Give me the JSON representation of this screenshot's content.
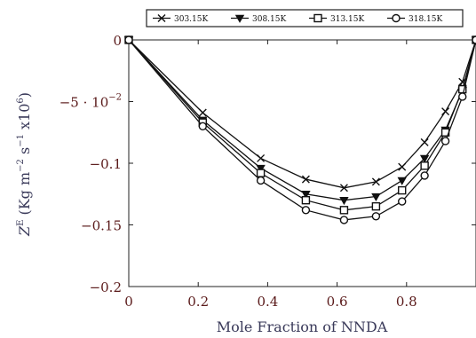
{
  "chart_data": {
    "type": "line",
    "xlabel": "Mole Fraction of NNDA",
    "ylabel": "Z^E (Kg m^-2 s^-1 x10^6)",
    "ylabel_parts": {
      "base": "Z",
      "sup": "E",
      "units_open": " (Kg m",
      "u1": "−2",
      "mid": " s",
      "u2": "−1",
      "tail": " x10",
      "u3": "6",
      "close": ")"
    },
    "xlim": [
      0,
      1.0
    ],
    "ylim": [
      -0.2,
      0
    ],
    "x_ticks": [
      0,
      0.2,
      0.4,
      0.6,
      0.8
    ],
    "x_tick_labels": [
      "0",
      "0.2",
      "0.4",
      "0.6",
      "0.8"
    ],
    "y_ticks": [
      0,
      -0.05,
      -0.1,
      -0.15,
      -0.2
    ],
    "y_tick_labels": [
      "0",
      "−5 · 10",
      "−0.1",
      "−0.15",
      "−0.2"
    ],
    "y_tick_sup": [
      "",
      "−2",
      "",
      "",
      ""
    ],
    "legend_position": "top",
    "x": [
      0,
      0.213,
      0.38,
      0.51,
      0.62,
      0.712,
      0.787,
      0.852,
      0.912,
      0.961,
      1.0
    ],
    "series": [
      {
        "name": "303.15K",
        "marker": "x",
        "values": [
          0,
          -0.059,
          -0.096,
          -0.113,
          -0.12,
          -0.115,
          -0.103,
          -0.083,
          -0.058,
          -0.034,
          0
        ]
      },
      {
        "name": "308.15K",
        "marker": "triangle-down",
        "values": [
          0,
          -0.065,
          -0.104,
          -0.125,
          -0.13,
          -0.127,
          -0.114,
          -0.096,
          -0.073,
          -0.041,
          0
        ]
      },
      {
        "name": "313.15K",
        "marker": "square",
        "values": [
          0,
          -0.067,
          -0.108,
          -0.13,
          -0.138,
          -0.135,
          -0.122,
          -0.102,
          -0.075,
          -0.04,
          0
        ]
      },
      {
        "name": "318.15K",
        "marker": "circle",
        "values": [
          0,
          -0.07,
          -0.114,
          -0.138,
          -0.146,
          -0.143,
          -0.131,
          -0.11,
          -0.082,
          -0.046,
          0
        ]
      }
    ]
  }
}
